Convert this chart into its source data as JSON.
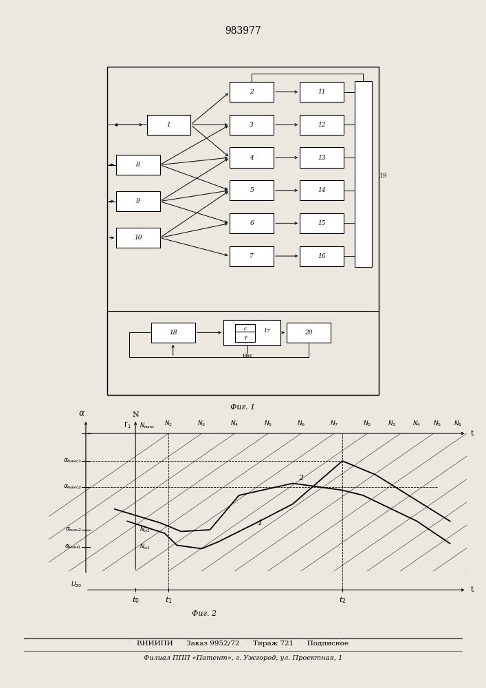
{
  "title": "983977",
  "fig1_caption": "Фиг. 1",
  "fig2_caption": "Фиг. 2",
  "bottom_text1": "ВНИИПИ      Заказ 9952/72      Тираж 721      Подписное",
  "bottom_text2": "Филиал ППП «Патент», г. Ужгород, ул. Проектная, 1",
  "bg_color": "#ede8df",
  "paper_color": "#f5f2ec"
}
